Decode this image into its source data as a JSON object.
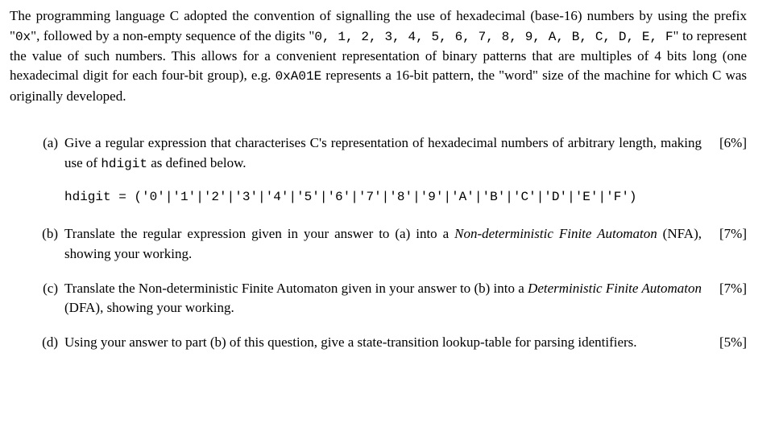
{
  "intro": {
    "t1": "The programming language C adopted the convention of signalling the use of hexadecimal (base-16) numbers by using the prefix \"",
    "prefix": "0x",
    "t2": "\", followed by a non-empty sequence of the digits \"",
    "digits": "0, 1, 2, 3, 4, 5, 6, 7, 8, 9, A, B, C, D, E, F",
    "t3": "\" to represent the value of such numbers. This allows for a convenient representation of binary patterns that are multiples of 4 bits long (one hexadecimal digit for each four-bit group), e.g. ",
    "example": "0xA01E",
    "t4": " represents a 16-bit pattern, the \"word\" size of the machine for which C was originally developed."
  },
  "parts": {
    "a": {
      "label": "(a)",
      "t1": "Give a regular expression that characterises C's representation of hexadecimal numbers of arbitrary length, making use of ",
      "code1": "hdigit",
      "t2": " as defined below.",
      "codeline": "hdigit = ('0'|'1'|'2'|'3'|'4'|'5'|'6'|'7'|'8'|'9'|'A'|'B'|'C'|'D'|'E'|'F')",
      "marks": "[6%]"
    },
    "b": {
      "label": "(b)",
      "t1": "Translate the regular expression given in your answer to (a) into a ",
      "em1": "Non-deterministic Finite Automaton",
      "t2": " (NFA), showing your working.",
      "marks": "[7%]"
    },
    "c": {
      "label": "(c)",
      "t1": "Translate the Non-deterministic Finite Automaton given in your answer to (b) into a ",
      "em1": "Deterministic Finite Automaton",
      "t2": " (DFA), showing your working.",
      "marks": "[7%]"
    },
    "d": {
      "label": "(d)",
      "t1": "Using your answer to part (b) of this question, give a state-transition lookup-table for parsing identifiers.",
      "marks": "[5%]"
    }
  }
}
